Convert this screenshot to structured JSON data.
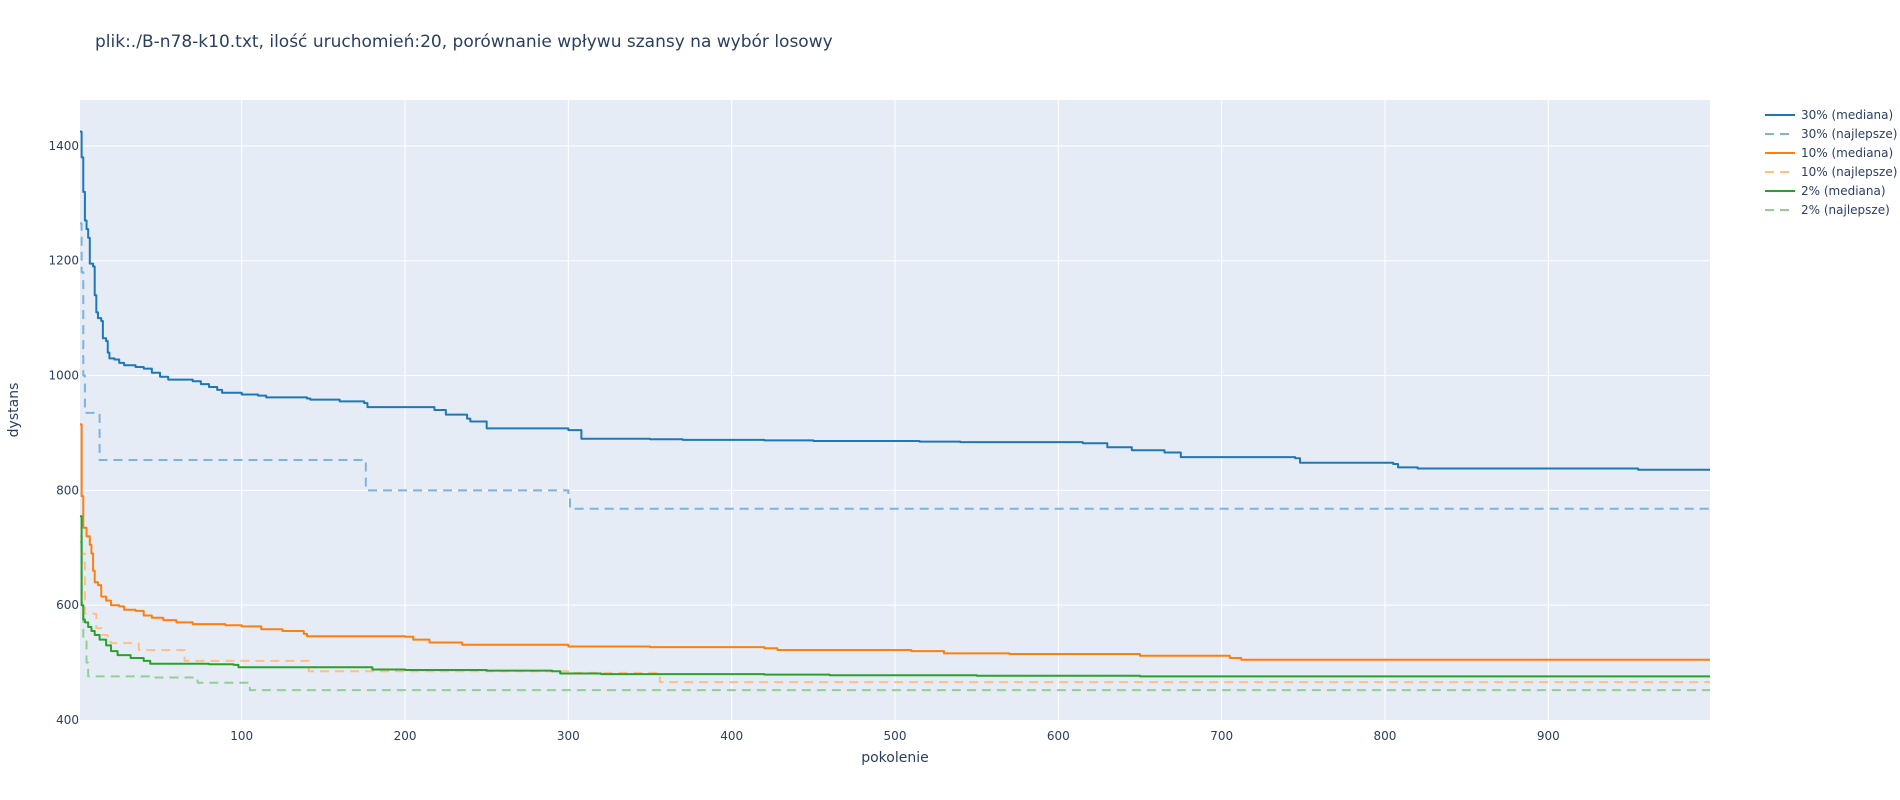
{
  "chart_data": {
    "type": "line",
    "title": "plik:./B-n78-k10.txt, ilość uruchomień:20, porównanie wpływu szansy na wybór losowy",
    "xlabel": "pokolenie",
    "ylabel": "dystans",
    "xlim": [
      1,
      999
    ],
    "ylim": [
      400,
      1480
    ],
    "xticks": [
      100,
      200,
      300,
      400,
      500,
      600,
      700,
      800,
      900
    ],
    "yticks": [
      400,
      600,
      800,
      1000,
      1200,
      1400
    ],
    "grid": true,
    "legend_position": "top-right",
    "series": [
      {
        "name": "30% (mediana)",
        "color": "#1f77b4",
        "dash": "solid",
        "points": [
          [
            1,
            1425
          ],
          [
            2,
            1380
          ],
          [
            3,
            1320
          ],
          [
            4,
            1270
          ],
          [
            5,
            1255
          ],
          [
            6,
            1240
          ],
          [
            7,
            1195
          ],
          [
            9,
            1190
          ],
          [
            10,
            1140
          ],
          [
            11,
            1110
          ],
          [
            12,
            1100
          ],
          [
            14,
            1095
          ],
          [
            15,
            1065
          ],
          [
            17,
            1060
          ],
          [
            18,
            1040
          ],
          [
            19,
            1030
          ],
          [
            22,
            1028
          ],
          [
            25,
            1022
          ],
          [
            28,
            1018
          ],
          [
            35,
            1015
          ],
          [
            40,
            1012
          ],
          [
            45,
            1005
          ],
          [
            50,
            998
          ],
          [
            55,
            993
          ],
          [
            70,
            990
          ],
          [
            75,
            985
          ],
          [
            80,
            980
          ],
          [
            85,
            975
          ],
          [
            88,
            970
          ],
          [
            100,
            967
          ],
          [
            110,
            965
          ],
          [
            115,
            962
          ],
          [
            140,
            960
          ],
          [
            142,
            958
          ],
          [
            160,
            955
          ],
          [
            175,
            952
          ],
          [
            177,
            945
          ],
          [
            215,
            945
          ],
          [
            218,
            940
          ],
          [
            225,
            932
          ],
          [
            238,
            925
          ],
          [
            240,
            920
          ],
          [
            250,
            908
          ],
          [
            295,
            908
          ],
          [
            300,
            905
          ],
          [
            308,
            890
          ],
          [
            350,
            889
          ],
          [
            370,
            888
          ],
          [
            420,
            887
          ],
          [
            450,
            886
          ],
          [
            515,
            885
          ],
          [
            540,
            884
          ],
          [
            615,
            882
          ],
          [
            630,
            875
          ],
          [
            645,
            870
          ],
          [
            665,
            866
          ],
          [
            675,
            858
          ],
          [
            745,
            856
          ],
          [
            748,
            848
          ],
          [
            805,
            846
          ],
          [
            808,
            840
          ],
          [
            820,
            838
          ],
          [
            955,
            836
          ],
          [
            999,
            836
          ]
        ]
      },
      {
        "name": "30% (najlepsze)",
        "color": "#7fb2dc",
        "dash": "dash",
        "points": [
          [
            1,
            1265
          ],
          [
            2,
            1180
          ],
          [
            3,
            1000
          ],
          [
            4,
            935
          ],
          [
            12,
            935
          ],
          [
            13,
            853
          ],
          [
            175,
            853
          ],
          [
            176,
            800
          ],
          [
            295,
            800
          ],
          [
            300,
            790
          ],
          [
            301,
            768
          ],
          [
            999,
            768
          ]
        ]
      },
      {
        "name": "10% (mediana)",
        "color": "#ff7f0e",
        "dash": "solid",
        "points": [
          [
            1,
            915
          ],
          [
            2,
            790
          ],
          [
            3,
            735
          ],
          [
            5,
            720
          ],
          [
            7,
            705
          ],
          [
            8,
            690
          ],
          [
            9,
            660
          ],
          [
            10,
            640
          ],
          [
            12,
            635
          ],
          [
            14,
            615
          ],
          [
            17,
            608
          ],
          [
            20,
            600
          ],
          [
            25,
            598
          ],
          [
            28,
            592
          ],
          [
            35,
            590
          ],
          [
            40,
            582
          ],
          [
            45,
            578
          ],
          [
            52,
            574
          ],
          [
            60,
            570
          ],
          [
            70,
            567
          ],
          [
            90,
            565
          ],
          [
            100,
            563
          ],
          [
            112,
            558
          ],
          [
            125,
            555
          ],
          [
            138,
            550
          ],
          [
            140,
            546
          ],
          [
            200,
            545
          ],
          [
            205,
            540
          ],
          [
            215,
            535
          ],
          [
            235,
            531
          ],
          [
            300,
            528
          ],
          [
            350,
            527
          ],
          [
            420,
            525
          ],
          [
            428,
            522
          ],
          [
            510,
            520
          ],
          [
            530,
            516
          ],
          [
            570,
            515
          ],
          [
            650,
            512
          ],
          [
            700,
            512
          ],
          [
            705,
            508
          ],
          [
            712,
            505
          ],
          [
            999,
            505
          ]
        ]
      },
      {
        "name": "10% (najlepsze)",
        "color": "#ffbf87",
        "dash": "dash",
        "points": [
          [
            1,
            720
          ],
          [
            2,
            690
          ],
          [
            4,
            585
          ],
          [
            10,
            585
          ],
          [
            11,
            560
          ],
          [
            14,
            548
          ],
          [
            18,
            536
          ],
          [
            20,
            534
          ],
          [
            36,
            534
          ],
          [
            37,
            522
          ],
          [
            64,
            522
          ],
          [
            65,
            503
          ],
          [
            140,
            503
          ],
          [
            141,
            485
          ],
          [
            300,
            485
          ],
          [
            301,
            482
          ],
          [
            355,
            482
          ],
          [
            356,
            466
          ],
          [
            999,
            466
          ]
        ]
      },
      {
        "name": "2% (mediana)",
        "color": "#2ca02c",
        "dash": "solid",
        "points": [
          [
            1,
            755
          ],
          [
            2,
            600
          ],
          [
            3,
            575
          ],
          [
            4,
            570
          ],
          [
            6,
            562
          ],
          [
            8,
            555
          ],
          [
            10,
            548
          ],
          [
            13,
            540
          ],
          [
            17,
            530
          ],
          [
            20,
            520
          ],
          [
            24,
            513
          ],
          [
            32,
            508
          ],
          [
            40,
            503
          ],
          [
            44,
            498
          ],
          [
            80,
            497
          ],
          [
            95,
            496
          ],
          [
            98,
            492
          ],
          [
            170,
            492
          ],
          [
            180,
            488
          ],
          [
            200,
            487
          ],
          [
            250,
            486
          ],
          [
            290,
            485
          ],
          [
            295,
            481
          ],
          [
            320,
            480
          ],
          [
            420,
            479
          ],
          [
            460,
            478
          ],
          [
            550,
            477
          ],
          [
            650,
            476
          ],
          [
            999,
            476
          ]
        ]
      },
      {
        "name": "2% (najlepsze)",
        "color": "#92d092",
        "dash": "dash",
        "points": [
          [
            1,
            710
          ],
          [
            2,
            600
          ],
          [
            3,
            545
          ],
          [
            5,
            500
          ],
          [
            6,
            476
          ],
          [
            44,
            476
          ],
          [
            45,
            474
          ],
          [
            72,
            474
          ],
          [
            73,
            465
          ],
          [
            104,
            465
          ],
          [
            105,
            452
          ],
          [
            999,
            452
          ]
        ]
      }
    ]
  }
}
